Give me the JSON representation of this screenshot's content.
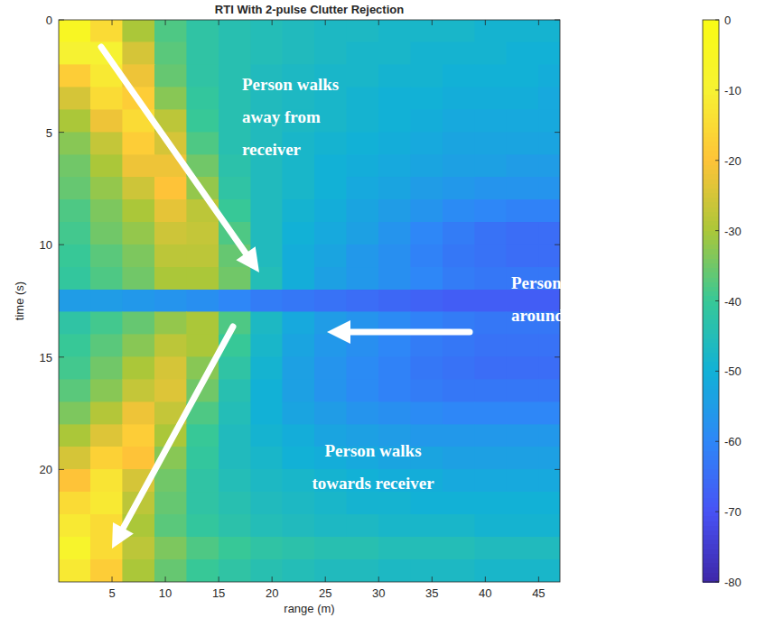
{
  "chart_data": {
    "type": "heatmap",
    "title": "RTI With 2-pulse Clutter Rejection",
    "x_label": "range (m)",
    "y_label": "time (s)",
    "annotations": [
      "Person walks away from receiver",
      "Person turns around",
      "Person walks towards receiver"
    ],
    "xlim": [
      0,
      47
    ],
    "ylim": [
      0,
      25
    ],
    "xticks": [
      5,
      10,
      15,
      20,
      25,
      30,
      35,
      40,
      45
    ],
    "yticks": [
      0,
      5,
      10,
      15,
      20
    ],
    "x_bins": [
      0,
      3,
      6,
      9,
      12,
      15,
      18,
      21,
      24,
      27,
      30,
      33,
      36,
      39,
      42,
      45,
      47
    ],
    "y_bins": [
      0,
      1,
      2,
      3,
      4,
      5,
      6,
      7,
      8,
      9,
      10,
      11,
      12,
      13,
      14,
      15,
      16,
      17,
      18,
      19,
      20,
      21,
      22,
      23,
      24,
      25
    ],
    "values": [
      [
        -5,
        -15,
        -30,
        -38,
        -42,
        -44,
        -45,
        -46,
        -47,
        -47,
        -48,
        -48,
        -48,
        -49,
        -49,
        -49
      ],
      [
        -10,
        -10,
        -25,
        -37,
        -42,
        -44,
        -45,
        -46,
        -47,
        -48,
        -48,
        -49,
        -49,
        -49,
        -50,
        -50
      ],
      [
        -18,
        -12,
        -22,
        -36,
        -42,
        -44,
        -46,
        -47,
        -48,
        -48,
        -49,
        -49,
        -50,
        -50,
        -50,
        -51
      ],
      [
        -25,
        -15,
        -18,
        -33,
        -41,
        -44,
        -46,
        -47,
        -48,
        -49,
        -50,
        -50,
        -51,
        -51,
        -51,
        -52
      ],
      [
        -30,
        -22,
        -15,
        -28,
        -40,
        -44,
        -46,
        -47,
        -48,
        -49,
        -50,
        -51,
        -52,
        -52,
        -52,
        -52
      ],
      [
        -33,
        -27,
        -18,
        -25,
        -38,
        -44,
        -46,
        -48,
        -49,
        -50,
        -51,
        -52,
        -53,
        -53,
        -53,
        -53
      ],
      [
        -35,
        -30,
        -22,
        -22,
        -35,
        -43,
        -46,
        -48,
        -50,
        -51,
        -52,
        -53,
        -54,
        -54,
        -55,
        -55
      ],
      [
        -36,
        -32,
        -26,
        -20,
        -32,
        -42,
        -46,
        -48,
        -50,
        -52,
        -53,
        -55,
        -56,
        -57,
        -57,
        -57
      ],
      [
        -38,
        -34,
        -30,
        -23,
        -28,
        -40,
        -46,
        -49,
        -51,
        -53,
        -55,
        -57,
        -59,
        -60,
        -61,
        -61
      ],
      [
        -39,
        -35,
        -32,
        -26,
        -27,
        -38,
        -46,
        -50,
        -52,
        -54,
        -57,
        -60,
        -62,
        -64,
        -65,
        -65
      ],
      [
        -40,
        -37,
        -34,
        -28,
        -28,
        -36,
        -46,
        -51,
        -53,
        -56,
        -58,
        -61,
        -63,
        -64,
        -65,
        -65
      ],
      [
        -41,
        -38,
        -35,
        -30,
        -30,
        -35,
        -45,
        -51,
        -54,
        -56,
        -58,
        -60,
        -62,
        -63,
        -63,
        -63
      ],
      [
        -55,
        -55,
        -56,
        -57,
        -58,
        -60,
        -62,
        -63,
        -64,
        -65,
        -66,
        -67,
        -68,
        -68,
        -68,
        -68
      ],
      [
        -42,
        -39,
        -36,
        -32,
        -30,
        -38,
        -47,
        -52,
        -55,
        -57,
        -59,
        -61,
        -62,
        -63,
        -63,
        -63
      ],
      [
        -40,
        -37,
        -33,
        -28,
        -30,
        -40,
        -48,
        -53,
        -56,
        -58,
        -60,
        -62,
        -63,
        -64,
        -64,
        -64
      ],
      [
        -39,
        -35,
        -30,
        -25,
        -33,
        -42,
        -49,
        -54,
        -57,
        -59,
        -61,
        -63,
        -64,
        -65,
        -65,
        -65
      ],
      [
        -37,
        -33,
        -27,
        -24,
        -35,
        -44,
        -50,
        -54,
        -57,
        -59,
        -61,
        -62,
        -63,
        -63,
        -63,
        -63
      ],
      [
        -34,
        -29,
        -22,
        -27,
        -38,
        -45,
        -50,
        -53,
        -55,
        -57,
        -58,
        -59,
        -60,
        -60,
        -60,
        -60
      ],
      [
        -30,
        -24,
        -18,
        -30,
        -40,
        -46,
        -49,
        -51,
        -53,
        -54,
        -55,
        -56,
        -56,
        -56,
        -56,
        -56
      ],
      [
        -25,
        -17,
        -20,
        -33,
        -41,
        -46,
        -48,
        -50,
        -51,
        -52,
        -53,
        -53,
        -54,
        -54,
        -54,
        -54
      ],
      [
        -20,
        -13,
        -25,
        -35,
        -42,
        -45,
        -47,
        -48,
        -49,
        -50,
        -51,
        -51,
        -52,
        -52,
        -52,
        -52
      ],
      [
        -15,
        -12,
        -28,
        -36,
        -42,
        -44,
        -46,
        -47,
        -48,
        -49,
        -49,
        -50,
        -50,
        -50,
        -50,
        -50
      ],
      [
        -12,
        -15,
        -30,
        -37,
        -41,
        -43,
        -45,
        -46,
        -47,
        -47,
        -48,
        -48,
        -48,
        -49,
        -49,
        -49
      ],
      [
        -8,
        -15,
        -28,
        -34,
        -38,
        -40,
        -42,
        -43,
        -44,
        -44,
        -45,
        -45,
        -45,
        -46,
        -46,
        -46
      ],
      [
        -12,
        -18,
        -30,
        -36,
        -40,
        -42,
        -44,
        -45,
        -46,
        -46,
        -47,
        -47,
        -47,
        -48,
        -48,
        -48
      ]
    ],
    "colorbar_lim": [
      -80,
      0
    ],
    "colorbar_ticks": [
      0,
      -10,
      -20,
      -30,
      -40,
      -50,
      -60,
      -70,
      -80
    ]
  }
}
